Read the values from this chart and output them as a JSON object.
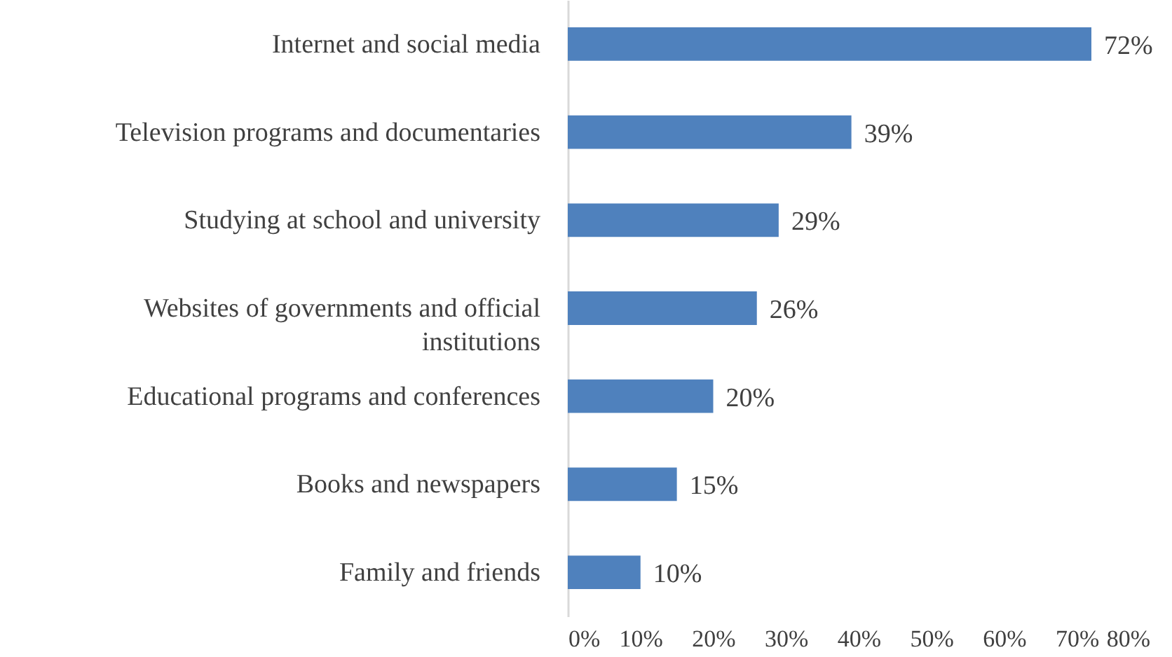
{
  "chart_data": {
    "type": "bar",
    "orientation": "horizontal",
    "categories": [
      "Internet and social media",
      "Television programs and documentaries",
      "Studying at school and university",
      "Websites of governments and official institutions",
      "Educational programs and conferences",
      "Books and newspapers",
      "Family and friends"
    ],
    "values": [
      72,
      39,
      29,
      26,
      20,
      15,
      10
    ],
    "value_labels": [
      "72%",
      "39%",
      "29%",
      "26%",
      "20%",
      "15%",
      "10%"
    ],
    "color": "#4f81bd",
    "xlim": [
      0,
      80
    ],
    "xticks": [
      {
        "value": 0,
        "label": "0%"
      },
      {
        "value": 10,
        "label": "10%"
      },
      {
        "value": 20,
        "label": "20%"
      },
      {
        "value": 30,
        "label": "30%"
      },
      {
        "value": 40,
        "label": "40%"
      },
      {
        "value": 50,
        "label": "50%"
      },
      {
        "value": 60,
        "label": "60%"
      },
      {
        "value": 70,
        "label": "70%"
      },
      {
        "value": 80,
        "label": "80%"
      }
    ]
  }
}
